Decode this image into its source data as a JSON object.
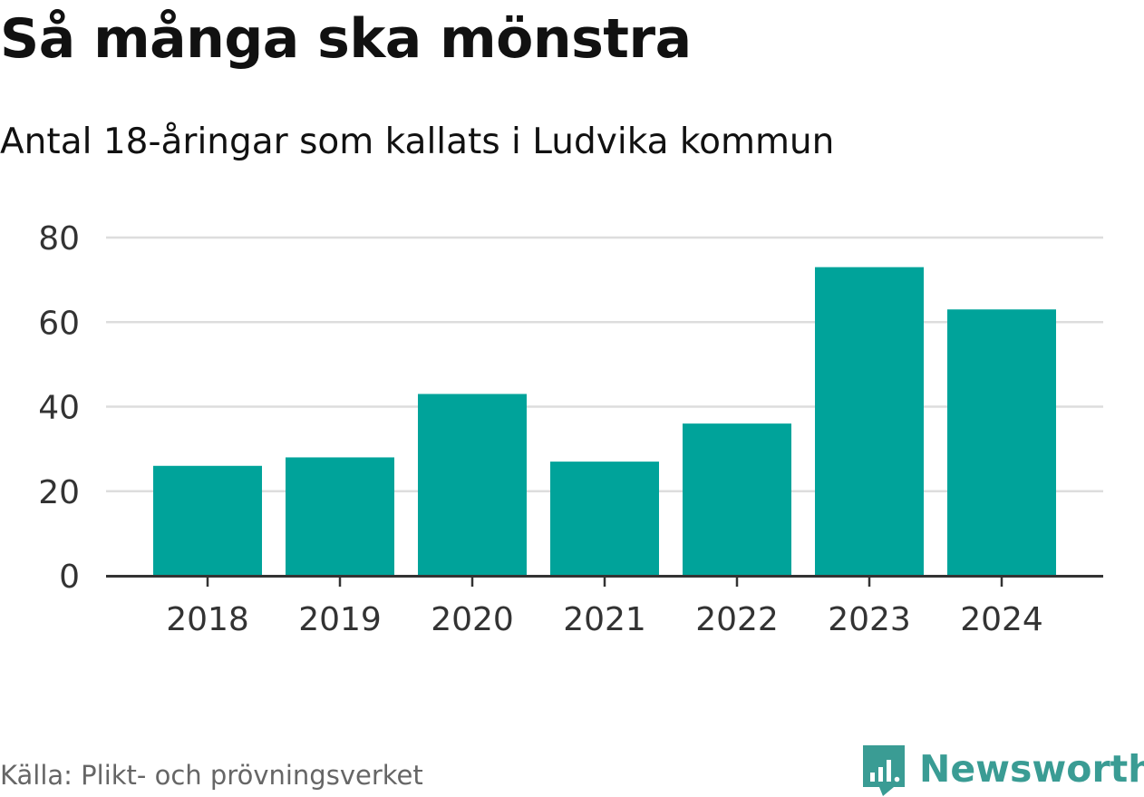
{
  "header": {
    "title": "Så många ska mönstra",
    "subtitle": "Antal 18-åringar som kallats i Ludvika kommun"
  },
  "footer": {
    "source": "Källa: Plikt- och prövningsverket",
    "brand": "Newsworthy"
  },
  "colors": {
    "bar": "#00A39A",
    "grid": "#DDDDDD",
    "axis": "#333333",
    "brand": "#3A9C94"
  },
  "chart_data": {
    "type": "bar",
    "title": "Så många ska mönstra",
    "subtitle": "Antal 18-åringar som kallats i Ludvika kommun",
    "categories": [
      "2018",
      "2019",
      "2020",
      "2021",
      "2022",
      "2023",
      "2024"
    ],
    "values": [
      26,
      28,
      43,
      27,
      36,
      73,
      63
    ],
    "yticks": [
      "0",
      "20",
      "40",
      "60",
      "80"
    ],
    "ylim": [
      0,
      80
    ],
    "xlabel": "",
    "ylabel": "",
    "grid": true,
    "legend": "none"
  }
}
